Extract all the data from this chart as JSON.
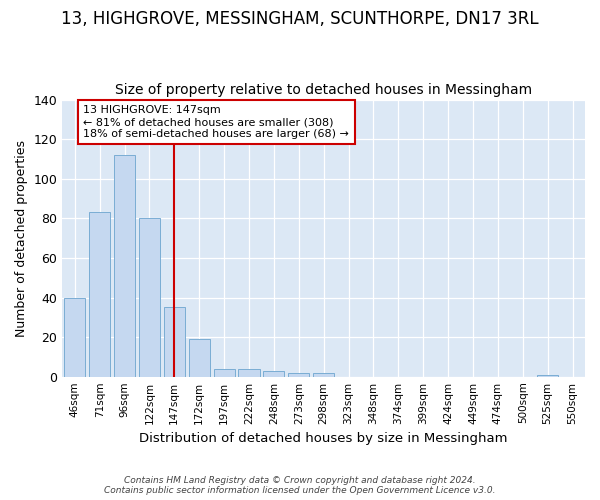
{
  "title": "13, HIGHGROVE, MESSINGHAM, SCUNTHORPE, DN17 3RL",
  "subtitle": "Size of property relative to detached houses in Messingham",
  "xlabel": "Distribution of detached houses by size in Messingham",
  "ylabel": "Number of detached properties",
  "bar_labels": [
    "46sqm",
    "71sqm",
    "96sqm",
    "122sqm",
    "147sqm",
    "172sqm",
    "197sqm",
    "222sqm",
    "248sqm",
    "273sqm",
    "298sqm",
    "323sqm",
    "348sqm",
    "374sqm",
    "399sqm",
    "424sqm",
    "449sqm",
    "474sqm",
    "500sqm",
    "525sqm",
    "550sqm"
  ],
  "bar_values": [
    40,
    83,
    112,
    80,
    35,
    19,
    4,
    4,
    3,
    2,
    2,
    0,
    0,
    0,
    0,
    0,
    0,
    0,
    0,
    1,
    0
  ],
  "bar_color": "#c5d8f0",
  "bar_edge_color": "#7aadd4",
  "vline_x": 4,
  "vline_color": "#cc0000",
  "annotation_text": "13 HIGHGROVE: 147sqm\n← 81% of detached houses are smaller (308)\n18% of semi-detached houses are larger (68) →",
  "annotation_box_color": "#ffffff",
  "annotation_box_edge": "#cc0000",
  "ylim": [
    0,
    140
  ],
  "yticks": [
    0,
    20,
    40,
    60,
    80,
    100,
    120,
    140
  ],
  "background_color": "#dce8f5",
  "fig_background": "#ffffff",
  "footer": "Contains HM Land Registry data © Crown copyright and database right 2024.\nContains public sector information licensed under the Open Government Licence v3.0.",
  "title_fontsize": 12,
  "subtitle_fontsize": 10
}
